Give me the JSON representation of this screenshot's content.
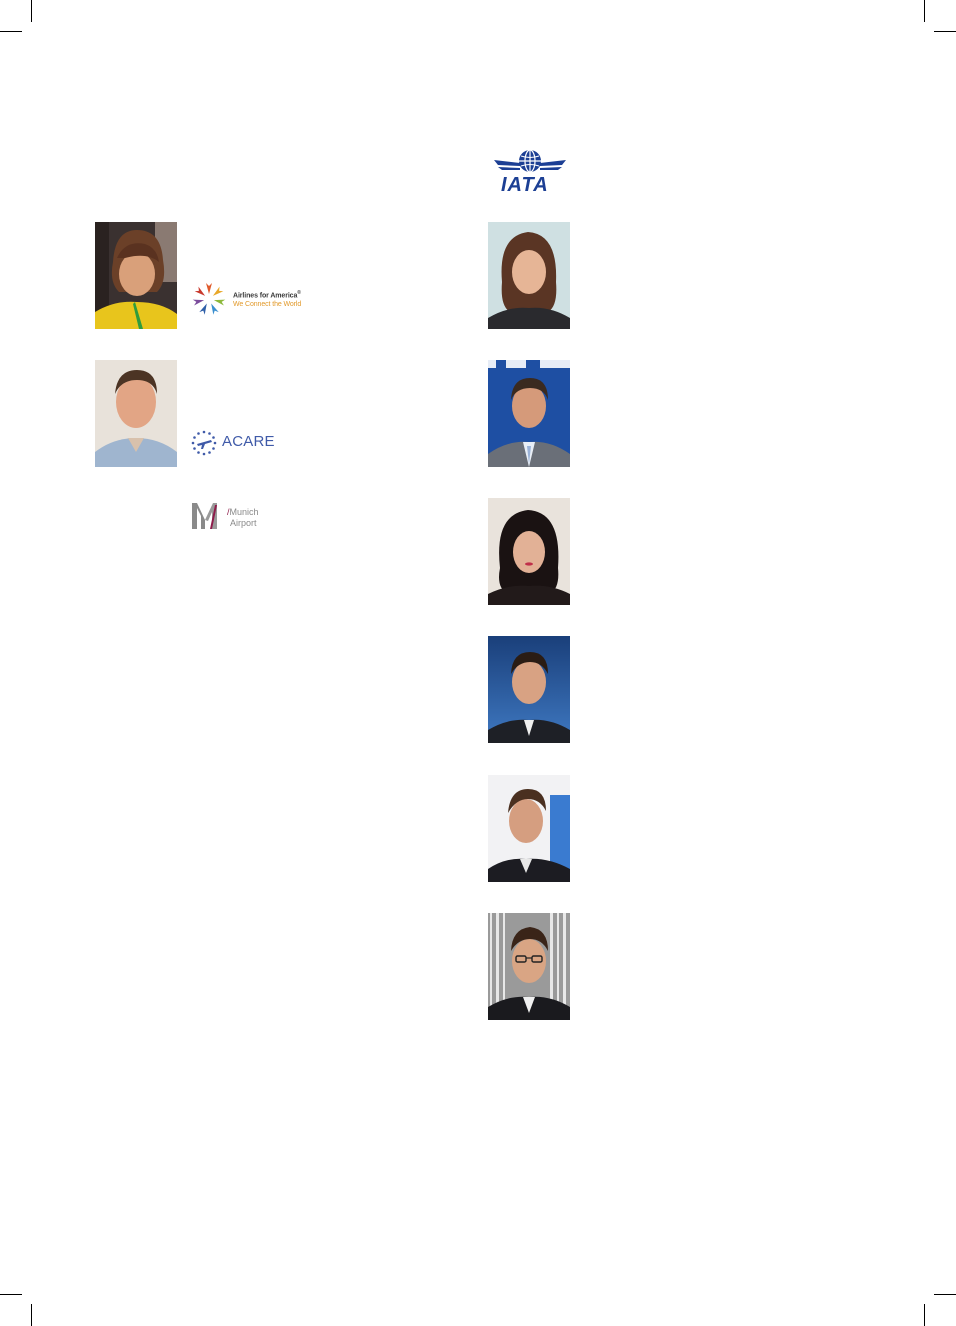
{
  "logos": {
    "iata": {
      "text": "IATA",
      "icon": "globe-wings-icon",
      "color": "#1c3f94"
    },
    "a4a": {
      "name": "Airlines for America",
      "mark": "®",
      "tagline": "We Connect the World",
      "icon": "starburst-planes-icon"
    },
    "acare": {
      "text": "ACARE",
      "icon": "eu-stars-plane-icon",
      "color": "#3f5aa8"
    },
    "munich": {
      "slash": "/",
      "line1": "Munich",
      "line2": "Airport",
      "icon": "m-letter-icon"
    }
  },
  "photos": {
    "left": [
      {
        "id": "portrait-woman-1"
      },
      {
        "id": "portrait-man-1"
      }
    ],
    "right": [
      {
        "id": "portrait-woman-2"
      },
      {
        "id": "portrait-man-2"
      },
      {
        "id": "portrait-woman-3"
      },
      {
        "id": "portrait-man-3"
      },
      {
        "id": "portrait-man-4"
      },
      {
        "id": "portrait-man-5"
      }
    ]
  }
}
